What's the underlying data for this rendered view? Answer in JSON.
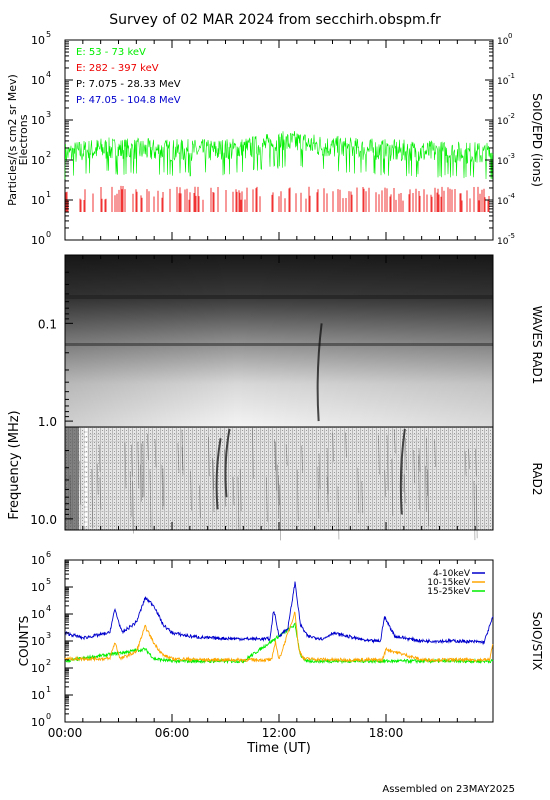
{
  "title": "Survey of 02 MAR 2024 from secchirh.obspm.fr",
  "footer": "Assembled on 23MAY2025",
  "colors": {
    "green": "#00ee00",
    "red": "#ee0000",
    "black": "#000000",
    "blue": "#0000cc",
    "orange": "#ffa500"
  },
  "chart_data": [
    {
      "type": "line",
      "panel": "SoIO/EPD particles",
      "ylabel": "Particles/(s cm2 sr Mev)",
      "ylabel2": "Electrons",
      "right_label": "SoIO/EPD (ions)",
      "yscale": "log",
      "ylim": [
        1,
        100000
      ],
      "yticks_exp": [
        "0",
        "1",
        "2",
        "3",
        "4",
        "5"
      ],
      "y2lim": [
        1e-05,
        1
      ],
      "y2ticks_exp": [
        "-5",
        "-4",
        "-3",
        "-2",
        "-1",
        "0"
      ],
      "xlim": [
        "00:00",
        "24:00"
      ],
      "legend_position": "top-left",
      "series": [
        {
          "name": "E: 53 - 73 keV",
          "color": "#00ee00",
          "x_hours": [
            0,
            2,
            4,
            6,
            8,
            10,
            12,
            13,
            14,
            16,
            18,
            20,
            22,
            24
          ],
          "values": [
            150,
            200,
            190,
            180,
            180,
            200,
            280,
            300,
            250,
            200,
            180,
            170,
            160,
            150
          ]
        },
        {
          "name": "E: 282 - 397 keV",
          "color": "#ee0000",
          "x_hours": [
            0,
            4,
            8,
            12,
            16,
            20,
            24
          ],
          "values": [
            8,
            9,
            8,
            8,
            8,
            8,
            8
          ]
        },
        {
          "name": "P: 7.075 - 28.33 MeV",
          "color": "#000000",
          "x_hours": [],
          "values": []
        },
        {
          "name": "P: 47.05 - 104.8 MeV",
          "color": "#0000cc",
          "x_hours": [],
          "values": []
        }
      ]
    },
    {
      "type": "heatmap",
      "panel": "radio spectrogram",
      "ylabel": "Frequency (MHz)",
      "right_labels": [
        "WAVES RAD1",
        "RAD2"
      ],
      "yscale": "log",
      "yreversed": true,
      "ylim": [
        0.02,
        13
      ],
      "yticks": [
        "0.1",
        "1.0",
        "10.0"
      ],
      "band_boundary_mhz": 1.0,
      "xlim": [
        "00:00",
        "24:00"
      ],
      "bursts": [
        {
          "time": "14:10",
          "fmin_mhz": 0.1,
          "fmax_mhz": 1.0
        },
        {
          "time": "08:30",
          "fmin_mhz": 1.5,
          "fmax_mhz": 8.0
        },
        {
          "time": "09:00",
          "fmin_mhz": 1.2,
          "fmax_mhz": 6.0
        },
        {
          "time": "18:50",
          "fmin_mhz": 1.2,
          "fmax_mhz": 9.0
        }
      ]
    },
    {
      "type": "line",
      "panel": "SoIO/STIX counts",
      "ylabel": "COUNTS",
      "right_label": "SoIO/STIX",
      "yscale": "log",
      "ylim": [
        1,
        1000000
      ],
      "yticks_exp": [
        "0",
        "1",
        "2",
        "3",
        "4",
        "5",
        "6"
      ],
      "xlabel": "Time (UT)",
      "xlim": [
        "00:00",
        "24:00"
      ],
      "xticks": [
        "00:00",
        "06:00",
        "12:00",
        "18:00"
      ],
      "legend_position": "top-right",
      "series": [
        {
          "name": "4-10keV",
          "color": "#0000cc",
          "x_hours": [
            0,
            1,
            2.5,
            2.8,
            3.2,
            4.0,
            4.5,
            5.0,
            5.5,
            6.0,
            7.0,
            8.0,
            10.0,
            11.5,
            11.7,
            12.0,
            12.5,
            12.9,
            13.2,
            13.6,
            14.5,
            15.0,
            17.0,
            17.7,
            17.9,
            18.5,
            20.0,
            22.0,
            23.5,
            24.0
          ],
          "values": [
            2000,
            1300,
            2000,
            15000,
            2000,
            5000,
            40000,
            20000,
            4000,
            2000,
            1500,
            1300,
            1200,
            1200,
            15000,
            1500,
            3000,
            150000,
            4000,
            1500,
            1200,
            2000,
            1000,
            1000,
            8000,
            1500,
            1000,
            1000,
            900,
            8000
          ]
        },
        {
          "name": "10-15keV",
          "color": "#ffa500",
          "x_hours": [
            0,
            2.5,
            2.8,
            3.1,
            4.0,
            4.5,
            5.0,
            5.5,
            6.0,
            8.0,
            10.0,
            11.6,
            11.8,
            12.0,
            12.9,
            13.1,
            13.4,
            15.0,
            17.8,
            18.0,
            20.0,
            23.8,
            24.0
          ],
          "values": [
            220,
            220,
            900,
            220,
            400,
            3500,
            800,
            300,
            220,
            200,
            200,
            200,
            1000,
            200,
            12000,
            500,
            220,
            200,
            200,
            500,
            200,
            200,
            800
          ]
        },
        {
          "name": "15-25keV",
          "color": "#00ee00",
          "x_hours": [
            0,
            4.5,
            5.0,
            6.0,
            10.0,
            12.9,
            13.2,
            13.5,
            18.0,
            24.0
          ],
          "values": [
            180,
            500,
            220,
            180,
            180,
            4000,
            300,
            180,
            180,
            180
          ]
        }
      ]
    }
  ]
}
